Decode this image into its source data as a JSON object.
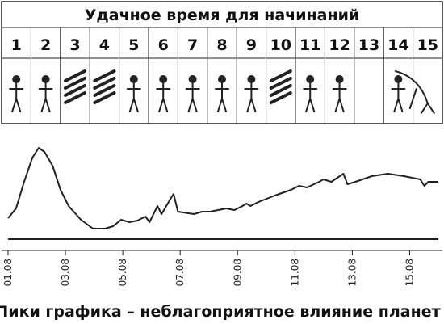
{
  "table": {
    "title": "Удачное время для начинаний",
    "days": [
      "1",
      "2",
      "3",
      "4",
      "5",
      "6",
      "7",
      "8",
      "9",
      "10",
      "11",
      "12",
      "13",
      "14",
      "15"
    ]
  },
  "chart_data": {
    "type": "line",
    "caption": "Пики графика – неблагоприятное влияние планет",
    "x": [
      1.0,
      1.28,
      1.56,
      1.85,
      2.07,
      2.27,
      2.55,
      2.83,
      3.11,
      3.54,
      3.96,
      4.38,
      4.66,
      4.94,
      5.23,
      5.51,
      5.79,
      5.93,
      6.21,
      6.35,
      6.63,
      6.77,
      6.92,
      7.48,
      7.76,
      8.04,
      8.32,
      8.61,
      8.89,
      9.17,
      9.31,
      9.45,
      9.73,
      10.3,
      10.86,
      11.14,
      11.42,
      11.85,
      11.99,
      12.27,
      12.69,
      12.83,
      13.11,
      13.68,
      14.24,
      14.8,
      15.37,
      15.51,
      15.65,
      16.0
    ],
    "series": [
      {
        "color": "#222222",
        "values": [
          26,
          38,
          71,
          101,
          113,
          108,
          91,
          61,
          41,
          24,
          13,
          13,
          16,
          24,
          21,
          23,
          28,
          21,
          41,
          31,
          48,
          56,
          34,
          31,
          34,
          34,
          36,
          38,
          36,
          41,
          44,
          41,
          46,
          54,
          61,
          66,
          64,
          71,
          74,
          71,
          81,
          68,
          71,
          78,
          81,
          78,
          74,
          66,
          71,
          71
        ]
      }
    ],
    "xlim": [
      1,
      16
    ],
    "xticks": [
      {
        "value": 1,
        "label": "01.08"
      },
      {
        "value": 3,
        "label": "03.08"
      },
      {
        "value": 5,
        "label": "05.08"
      },
      {
        "value": 7,
        "label": "07.08"
      },
      {
        "value": 9,
        "label": "09.08"
      },
      {
        "value": 11,
        "label": "11.08"
      },
      {
        "value": 13,
        "label": "13.08"
      },
      {
        "value": 15,
        "label": "15.08"
      }
    ],
    "ylim": [
      0,
      120
    ]
  }
}
